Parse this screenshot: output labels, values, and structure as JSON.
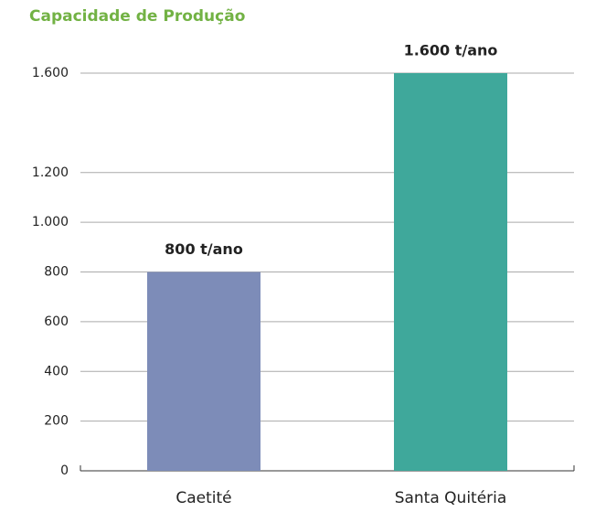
{
  "chart_data": {
    "type": "bar",
    "title": "Capacidade de Produção",
    "categories": [
      "Caetité",
      "Santa Quitéria"
    ],
    "values": [
      800,
      1600
    ],
    "value_labels": [
      "800 t/ano",
      "1.600 t/ano"
    ],
    "colors": [
      "#7d8cb8",
      "#3fa89b"
    ],
    "ylim": [
      0,
      1600
    ],
    "yticks": [
      0,
      200,
      400,
      600,
      800,
      {
        "value": 1000,
        "label": "1.000"
      },
      {
        "value": 1200,
        "label": "1.200"
      },
      {
        "value": 1600,
        "label": "1.600"
      }
    ],
    "grid": true
  }
}
